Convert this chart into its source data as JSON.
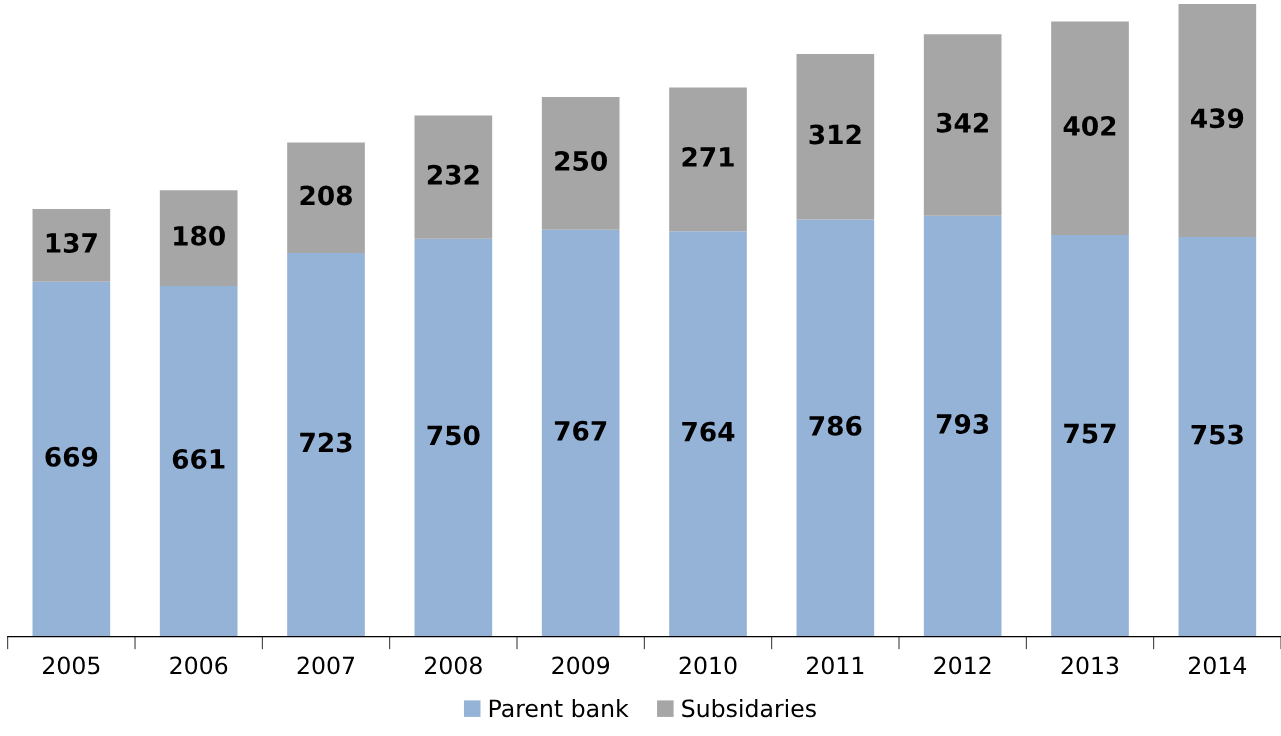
{
  "chart_data": {
    "type": "bar",
    "stacked": true,
    "categories": [
      "2005",
      "2006",
      "2007",
      "2008",
      "2009",
      "2010",
      "2011",
      "2012",
      "2013",
      "2014"
    ],
    "series": [
      {
        "name": "Parent bank",
        "color": "#95b3d7",
        "values": [
          669,
          661,
          723,
          750,
          767,
          764,
          786,
          793,
          757,
          753
        ]
      },
      {
        "name": "Subsidaries",
        "color": "#a6a6a6",
        "values": [
          137,
          180,
          208,
          232,
          250,
          271,
          312,
          342,
          402,
          439
        ]
      }
    ],
    "data_labels": true,
    "legend": "bottom",
    "grid": false
  }
}
